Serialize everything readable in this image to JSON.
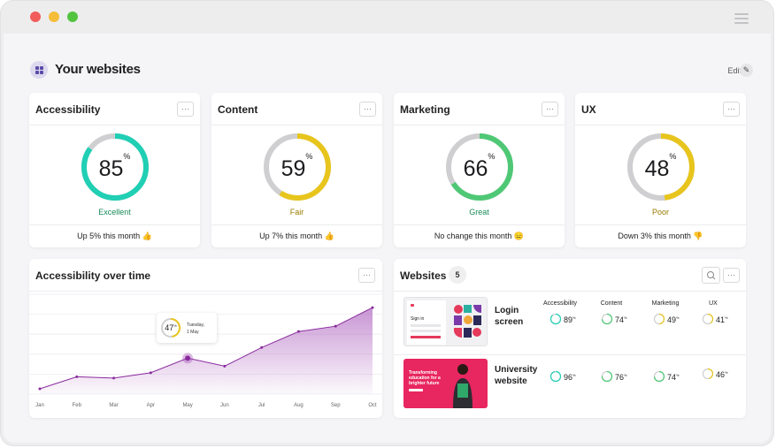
{
  "page": {
    "title": "Your websites",
    "edit_label": "Edit"
  },
  "colors": {
    "teal": "#20cfb4",
    "yellow": "#e8c51c",
    "green": "#4fc875",
    "track": "#cfcfd1",
    "purple": "#9b3fb0"
  },
  "score_cards": [
    {
      "title": "Accessibility",
      "value": 85,
      "label": "Excellent",
      "label_color": "#1a8a5a",
      "ring_color": "#20cfb4",
      "footer": "Up 5% this month 👍"
    },
    {
      "title": "Content",
      "value": 59,
      "label": "Fair",
      "label_color": "#9a7a00",
      "ring_color": "#e8c51c",
      "footer": "Up 7% this month 👍"
    },
    {
      "title": "Marketing",
      "value": 66,
      "label": "Great",
      "label_color": "#1a8a5a",
      "ring_color": "#4fc875",
      "footer": "No change this month 😑"
    },
    {
      "title": "UX",
      "value": 48,
      "label": "Poor",
      "label_color": "#9a7a00",
      "ring_color": "#e8c51c",
      "footer": "Down 3% this month 👎"
    }
  ],
  "chart_card": {
    "title": "Accessibility over time",
    "tooltip": {
      "value": 47,
      "day": "Tuesday,",
      "date": "1 May"
    }
  },
  "chart_data": {
    "type": "area",
    "title": "Accessibility over time",
    "categories": [
      "Jan",
      "Feb",
      "Mar",
      "Apr",
      "May",
      "Jun",
      "Jul",
      "Aug",
      "Sep",
      "Oct"
    ],
    "x": [
      "Jan",
      "Feb",
      "Mar",
      "Apr",
      "May",
      "Jun",
      "Jul",
      "Aug",
      "Sep",
      "Oct"
    ],
    "series": [
      {
        "name": "",
        "values": [
          24,
          33,
          32,
          36,
          47,
          41,
          55,
          67,
          71,
          85
        ]
      }
    ],
    "ylim": [
      20,
      95
    ],
    "grid": true,
    "highlight_index": 4
  },
  "websites_card": {
    "title": "Websites",
    "count": "5",
    "columns": [
      "Accessibility",
      "Content",
      "Marketing",
      "UX"
    ],
    "rows": [
      {
        "name_line1": "Login",
        "name_line2": "screen",
        "thumb_text": "Sign in",
        "scores": [
          {
            "value": 89,
            "color": "#20cfb4"
          },
          {
            "value": 74,
            "color": "#4fc875"
          },
          {
            "value": 49,
            "color": "#e8c51c"
          },
          {
            "value": 41,
            "color": "#e8c51c"
          }
        ]
      },
      {
        "name_line1": "University",
        "name_line2": "website",
        "thumb_text": "Transforming education for a brighter future",
        "scores": [
          {
            "value": 96,
            "color": "#20cfb4"
          },
          {
            "value": 76,
            "color": "#4fc875"
          },
          {
            "value": 74,
            "color": "#4fc875"
          },
          {
            "value": 46,
            "color": "#e8c51c"
          }
        ]
      }
    ]
  }
}
